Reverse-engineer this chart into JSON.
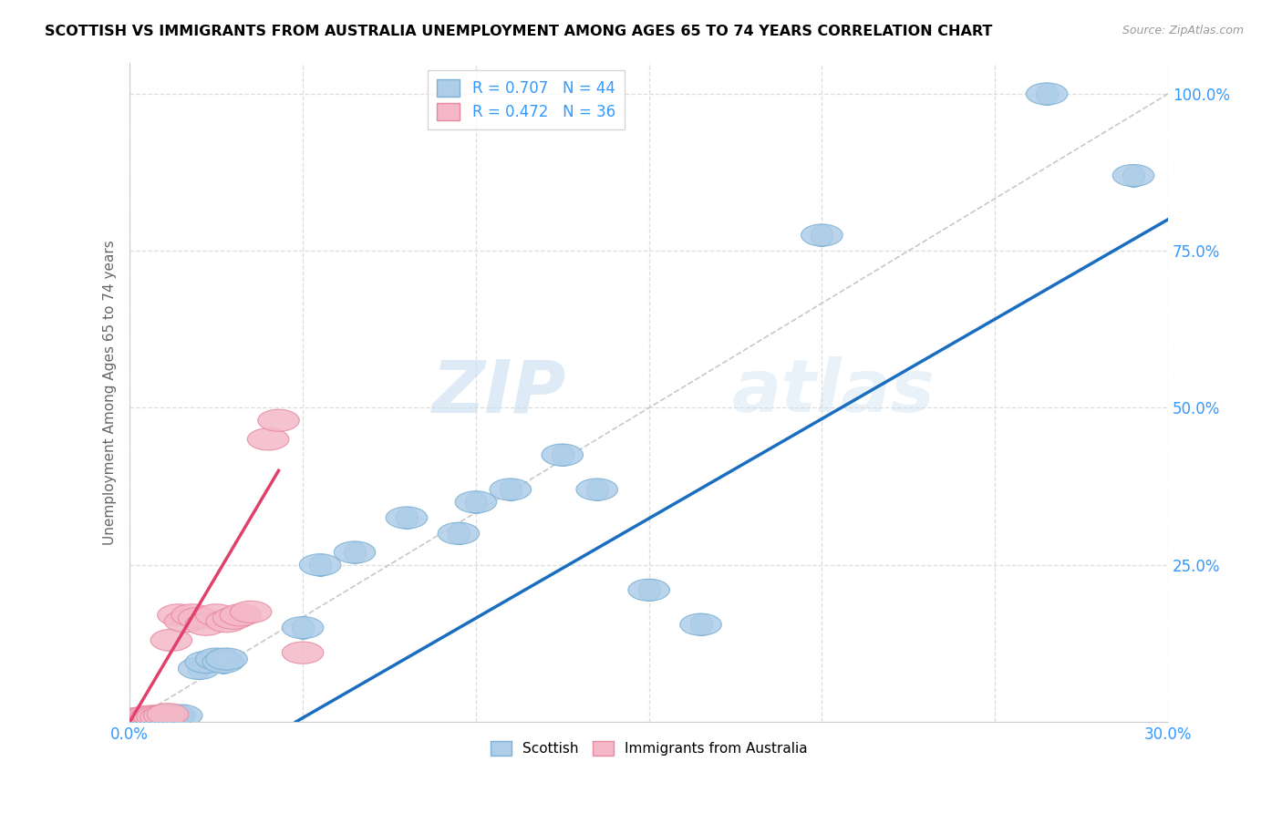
{
  "title": "SCOTTISH VS IMMIGRANTS FROM AUSTRALIA UNEMPLOYMENT AMONG AGES 65 TO 74 YEARS CORRELATION CHART",
  "source": "Source: ZipAtlas.com",
  "ylabel": "Unemployment Among Ages 65 to 74 years",
  "xlim": [
    0,
    0.3
  ],
  "ylim": [
    0,
    1.05
  ],
  "xticks": [
    0.0,
    0.05,
    0.1,
    0.15,
    0.2,
    0.25,
    0.3
  ],
  "xticklabels": [
    "0.0%",
    "",
    "",
    "",
    "",
    "",
    "30.0%"
  ],
  "yticks": [
    0.0,
    0.25,
    0.5,
    0.75,
    1.0
  ],
  "yticklabels": [
    "",
    "25.0%",
    "50.0%",
    "75.0%",
    "100.0%"
  ],
  "scottish_color": "#aecde8",
  "australian_color": "#f4b8c8",
  "scottish_edge": "#7ab0d4",
  "australian_edge": "#e888a0",
  "regression_blue": "#1a6ec0",
  "regression_pink": "#e0406a",
  "diagonal_color": "#c8c8c8",
  "R_scottish": 0.707,
  "N_scottish": 44,
  "R_australian": 0.472,
  "N_australian": 36,
  "legend_label_scottish": "Scottish",
  "legend_label_australian": "Immigrants from Australia",
  "watermark_zip": "ZIP",
  "watermark_atlas": "atlas",
  "tick_color": "#3399ff",
  "scottish_x": [
    0.001,
    0.001,
    0.002,
    0.002,
    0.003,
    0.003,
    0.003,
    0.004,
    0.004,
    0.005,
    0.005,
    0.005,
    0.006,
    0.006,
    0.007,
    0.007,
    0.008,
    0.008,
    0.009,
    0.01,
    0.01,
    0.011,
    0.012,
    0.013,
    0.015,
    0.02,
    0.022,
    0.025,
    0.027,
    0.028,
    0.05,
    0.055,
    0.065,
    0.08,
    0.095,
    0.1,
    0.11,
    0.125,
    0.135,
    0.15,
    0.165,
    0.2,
    0.265,
    0.29
  ],
  "scottish_y": [
    0.001,
    0.002,
    0.001,
    0.003,
    0.002,
    0.004,
    0.005,
    0.003,
    0.004,
    0.002,
    0.003,
    0.005,
    0.004,
    0.006,
    0.005,
    0.007,
    0.006,
    0.008,
    0.006,
    0.007,
    0.009,
    0.008,
    0.01,
    0.01,
    0.01,
    0.085,
    0.095,
    0.1,
    0.095,
    0.1,
    0.15,
    0.25,
    0.27,
    0.325,
    0.3,
    0.35,
    0.37,
    0.425,
    0.37,
    0.21,
    0.155,
    0.775,
    1.0,
    0.87
  ],
  "australian_x": [
    0.001,
    0.001,
    0.001,
    0.002,
    0.002,
    0.002,
    0.003,
    0.003,
    0.003,
    0.004,
    0.004,
    0.005,
    0.005,
    0.005,
    0.006,
    0.006,
    0.007,
    0.007,
    0.008,
    0.009,
    0.01,
    0.011,
    0.012,
    0.014,
    0.016,
    0.018,
    0.02,
    0.022,
    0.025,
    0.028,
    0.03,
    0.032,
    0.035,
    0.04,
    0.043,
    0.05
  ],
  "australian_y": [
    0.001,
    0.002,
    0.003,
    0.001,
    0.003,
    0.005,
    0.002,
    0.004,
    0.006,
    0.003,
    0.005,
    0.004,
    0.006,
    0.008,
    0.005,
    0.007,
    0.006,
    0.009,
    0.008,
    0.007,
    0.01,
    0.012,
    0.13,
    0.17,
    0.16,
    0.17,
    0.165,
    0.155,
    0.17,
    0.16,
    0.165,
    0.17,
    0.175,
    0.45,
    0.48,
    0.11
  ],
  "blue_line_x": [
    0.048,
    0.3
  ],
  "blue_line_y": [
    0.0,
    0.8
  ],
  "pink_line_x": [
    0.0,
    0.043
  ],
  "pink_line_y": [
    0.0,
    0.4
  ]
}
